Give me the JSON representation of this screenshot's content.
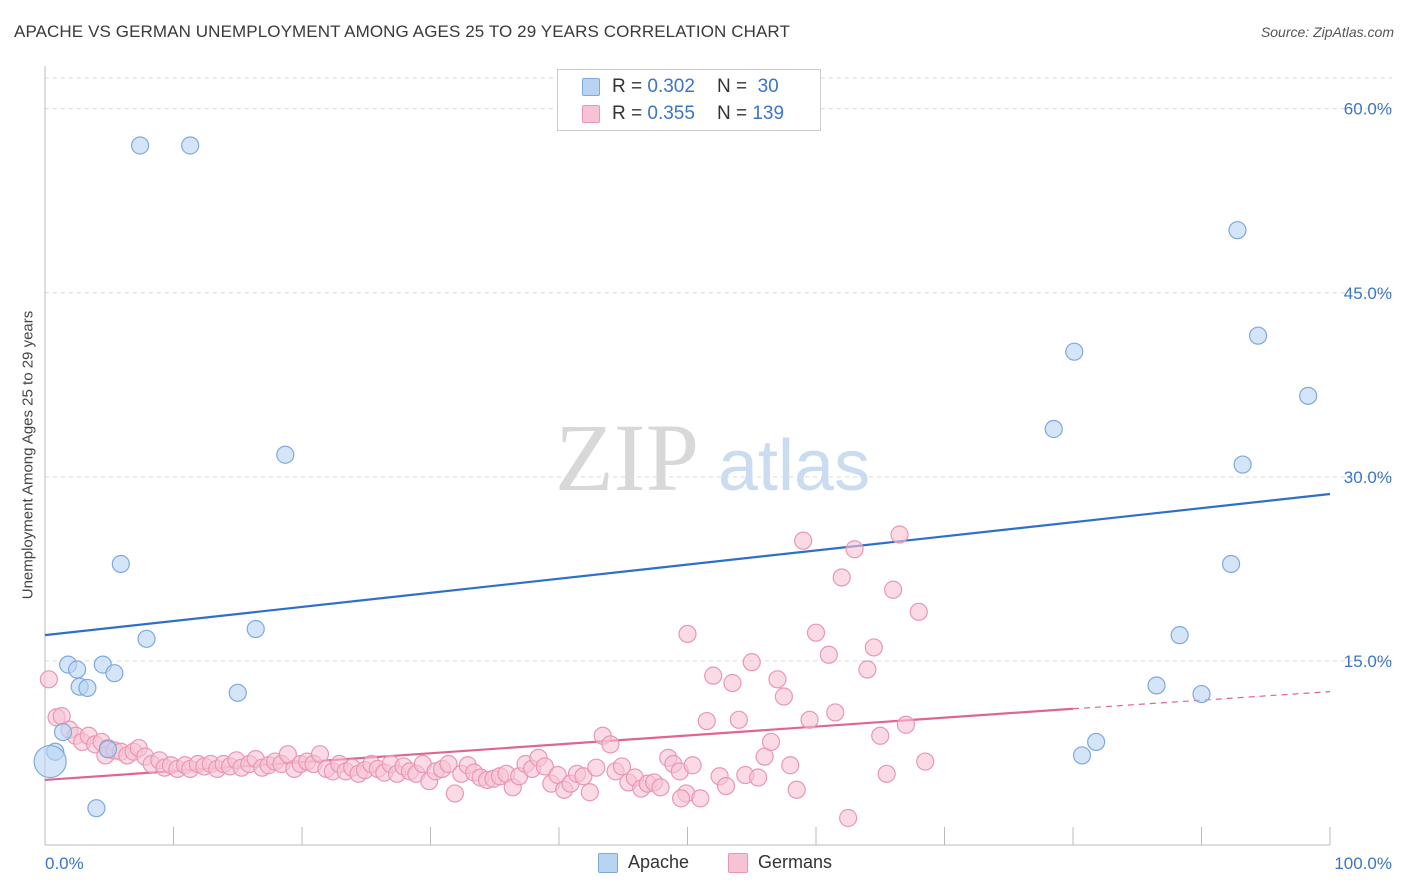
{
  "title": "APACHE VS GERMAN UNEMPLOYMENT AMONG AGES 25 TO 29 YEARS CORRELATION CHART",
  "source": "Source: ZipAtlas.com",
  "watermark": {
    "zip": "ZIP",
    "atlas": "atlas"
  },
  "legend": {
    "r_label": "R =",
    "n_label": "N =",
    "apache": {
      "r": "0.302",
      "n": "30"
    },
    "germans": {
      "r": "0.355",
      "n": "139"
    }
  },
  "colors": {
    "apache_fill": "#b9d3f3",
    "apache_stroke": "#7ea9df",
    "apache_line": "#2f6fcc",
    "germans_fill": "#f7c3d3",
    "germans_stroke": "#ea97b1",
    "germans_line": "#e06592",
    "tick_label": "#3b75c4",
    "grid": "#d9d9d9"
  },
  "chart_data": {
    "type": "scatter",
    "title": "APACHE VS GERMAN UNEMPLOYMENT AMONG AGES 25 TO 29 YEARS CORRELATION CHART",
    "xlabel": "",
    "ylabel": "Unemployment Among Ages 25 to 29 years",
    "xlim": [
      0,
      100
    ],
    "ylim": [
      0,
      62.5
    ],
    "x_tick_labels": [
      "0.0%",
      "100.0%"
    ],
    "y_ticks": [
      15,
      30,
      45,
      60
    ],
    "y_tick_labels": [
      "15.0%",
      "30.0%",
      "45.0%",
      "60.0%"
    ],
    "grid": "horizontal dashed",
    "legend_position": "top-center",
    "series": [
      {
        "name": "Apache",
        "r": 0.302,
        "n": 30,
        "trend": {
          "x": [
            0,
            100
          ],
          "y": [
            17.1,
            28.6
          ]
        },
        "points": [
          [
            7.4,
            57.0
          ],
          [
            11.3,
            57.0
          ],
          [
            18.7,
            31.8
          ],
          [
            5.9,
            22.9
          ],
          [
            7.9,
            16.8
          ],
          [
            16.4,
            17.6
          ],
          [
            1.8,
            14.7
          ],
          [
            2.5,
            14.3
          ],
          [
            4.5,
            14.7
          ],
          [
            5.4,
            14.0
          ],
          [
            2.7,
            12.9
          ],
          [
            3.3,
            12.8
          ],
          [
            15.0,
            12.4
          ],
          [
            1.4,
            9.2
          ],
          [
            0.8,
            7.6
          ],
          [
            0.4,
            6.8
          ],
          [
            4.9,
            7.8
          ],
          [
            4.0,
            3.0
          ],
          [
            92.8,
            50.1
          ],
          [
            94.4,
            41.5
          ],
          [
            80.1,
            40.2
          ],
          [
            98.3,
            36.6
          ],
          [
            78.5,
            33.9
          ],
          [
            93.2,
            31.0
          ],
          [
            92.3,
            22.9
          ],
          [
            88.3,
            17.1
          ],
          [
            86.5,
            13.0
          ],
          [
            90.0,
            12.3
          ],
          [
            80.7,
            7.3
          ],
          [
            81.8,
            8.4
          ]
        ]
      },
      {
        "name": "Germans",
        "r": 0.355,
        "n": 139,
        "trend": {
          "x": [
            0,
            80
          ],
          "y": [
            5.3,
            11.1
          ]
        },
        "trend_dashed": {
          "x": [
            80,
            100
          ],
          "y": [
            11.1,
            12.5
          ]
        },
        "points": [
          [
            0.3,
            13.5
          ],
          [
            0.9,
            10.4
          ],
          [
            1.3,
            10.5
          ],
          [
            1.9,
            9.4
          ],
          [
            2.4,
            8.9
          ],
          [
            2.9,
            8.4
          ],
          [
            3.4,
            8.9
          ],
          [
            3.9,
            8.2
          ],
          [
            4.4,
            8.4
          ],
          [
            4.9,
            7.9
          ],
          [
            4.7,
            7.3
          ],
          [
            5.4,
            7.7
          ],
          [
            5.9,
            7.6
          ],
          [
            6.4,
            7.3
          ],
          [
            6.9,
            7.6
          ],
          [
            7.3,
            7.9
          ],
          [
            7.8,
            7.2
          ],
          [
            8.3,
            6.6
          ],
          [
            8.9,
            6.9
          ],
          [
            9.3,
            6.3
          ],
          [
            9.8,
            6.5
          ],
          [
            10.3,
            6.2
          ],
          [
            10.9,
            6.5
          ],
          [
            11.3,
            6.2
          ],
          [
            11.9,
            6.6
          ],
          [
            12.4,
            6.4
          ],
          [
            12.9,
            6.6
          ],
          [
            13.4,
            6.2
          ],
          [
            13.9,
            6.6
          ],
          [
            14.4,
            6.4
          ],
          [
            14.9,
            6.9
          ],
          [
            15.3,
            6.3
          ],
          [
            15.9,
            6.6
          ],
          [
            16.4,
            7.0
          ],
          [
            16.9,
            6.3
          ],
          [
            17.4,
            6.5
          ],
          [
            17.9,
            6.8
          ],
          [
            18.4,
            6.6
          ],
          [
            18.9,
            7.4
          ],
          [
            19.4,
            6.2
          ],
          [
            19.9,
            6.6
          ],
          [
            20.4,
            6.8
          ],
          [
            20.9,
            6.6
          ],
          [
            21.4,
            7.4
          ],
          [
            21.9,
            6.2
          ],
          [
            22.4,
            6.0
          ],
          [
            22.9,
            6.6
          ],
          [
            23.4,
            6.0
          ],
          [
            23.9,
            6.3
          ],
          [
            24.4,
            5.8
          ],
          [
            24.9,
            6.1
          ],
          [
            25.4,
            6.6
          ],
          [
            25.9,
            6.2
          ],
          [
            26.4,
            5.9
          ],
          [
            26.9,
            6.6
          ],
          [
            27.4,
            5.8
          ],
          [
            27.9,
            6.4
          ],
          [
            28.4,
            6.0
          ],
          [
            28.9,
            5.8
          ],
          [
            29.4,
            6.6
          ],
          [
            29.9,
            5.2
          ],
          [
            30.4,
            6.0
          ],
          [
            30.9,
            6.2
          ],
          [
            31.4,
            6.6
          ],
          [
            31.9,
            4.2
          ],
          [
            32.4,
            5.8
          ],
          [
            32.9,
            6.5
          ],
          [
            33.4,
            5.9
          ],
          [
            33.9,
            5.5
          ],
          [
            34.4,
            5.3
          ],
          [
            34.9,
            5.4
          ],
          [
            35.4,
            5.6
          ],
          [
            35.9,
            5.8
          ],
          [
            36.4,
            4.7
          ],
          [
            36.9,
            5.6
          ],
          [
            37.4,
            6.6
          ],
          [
            37.9,
            6.2
          ],
          [
            38.4,
            7.1
          ],
          [
            38.9,
            6.4
          ],
          [
            39.4,
            5.0
          ],
          [
            39.9,
            5.7
          ],
          [
            40.4,
            4.5
          ],
          [
            40.9,
            5.0
          ],
          [
            41.4,
            5.8
          ],
          [
            41.9,
            5.6
          ],
          [
            42.4,
            4.3
          ],
          [
            42.9,
            6.3
          ],
          [
            43.4,
            8.9
          ],
          [
            44.0,
            8.2
          ],
          [
            44.4,
            6.0
          ],
          [
            44.9,
            6.4
          ],
          [
            45.4,
            5.1
          ],
          [
            45.9,
            5.5
          ],
          [
            46.4,
            4.6
          ],
          [
            46.9,
            5.0
          ],
          [
            47.4,
            5.1
          ],
          [
            47.9,
            4.7
          ],
          [
            48.5,
            7.1
          ],
          [
            48.9,
            6.6
          ],
          [
            49.4,
            6.0
          ],
          [
            49.9,
            4.2
          ],
          [
            50.4,
            6.5
          ],
          [
            51.0,
            3.8
          ],
          [
            51.5,
            10.1
          ],
          [
            52.0,
            13.8
          ],
          [
            52.5,
            5.6
          ],
          [
            53.0,
            4.8
          ],
          [
            53.5,
            13.2
          ],
          [
            54.0,
            10.2
          ],
          [
            54.5,
            5.7
          ],
          [
            55.0,
            14.9
          ],
          [
            55.5,
            5.5
          ],
          [
            56.0,
            7.2
          ],
          [
            56.5,
            8.4
          ],
          [
            57.0,
            13.5
          ],
          [
            57.5,
            12.1
          ],
          [
            58.0,
            6.5
          ],
          [
            58.5,
            4.5
          ],
          [
            59.0,
            24.8
          ],
          [
            59.5,
            10.2
          ],
          [
            60.0,
            17.3
          ],
          [
            61.0,
            15.5
          ],
          [
            61.5,
            10.8
          ],
          [
            62.0,
            21.8
          ],
          [
            62.5,
            2.2
          ],
          [
            63.0,
            24.1
          ],
          [
            64.0,
            14.3
          ],
          [
            64.5,
            16.1
          ],
          [
            65.0,
            8.9
          ],
          [
            65.5,
            5.8
          ],
          [
            66.0,
            20.8
          ],
          [
            66.5,
            25.3
          ],
          [
            67.0,
            9.8
          ],
          [
            68.0,
            19.0
          ],
          [
            68.5,
            6.8
          ],
          [
            50.0,
            17.2
          ],
          [
            49.5,
            3.8
          ]
        ]
      }
    ]
  }
}
